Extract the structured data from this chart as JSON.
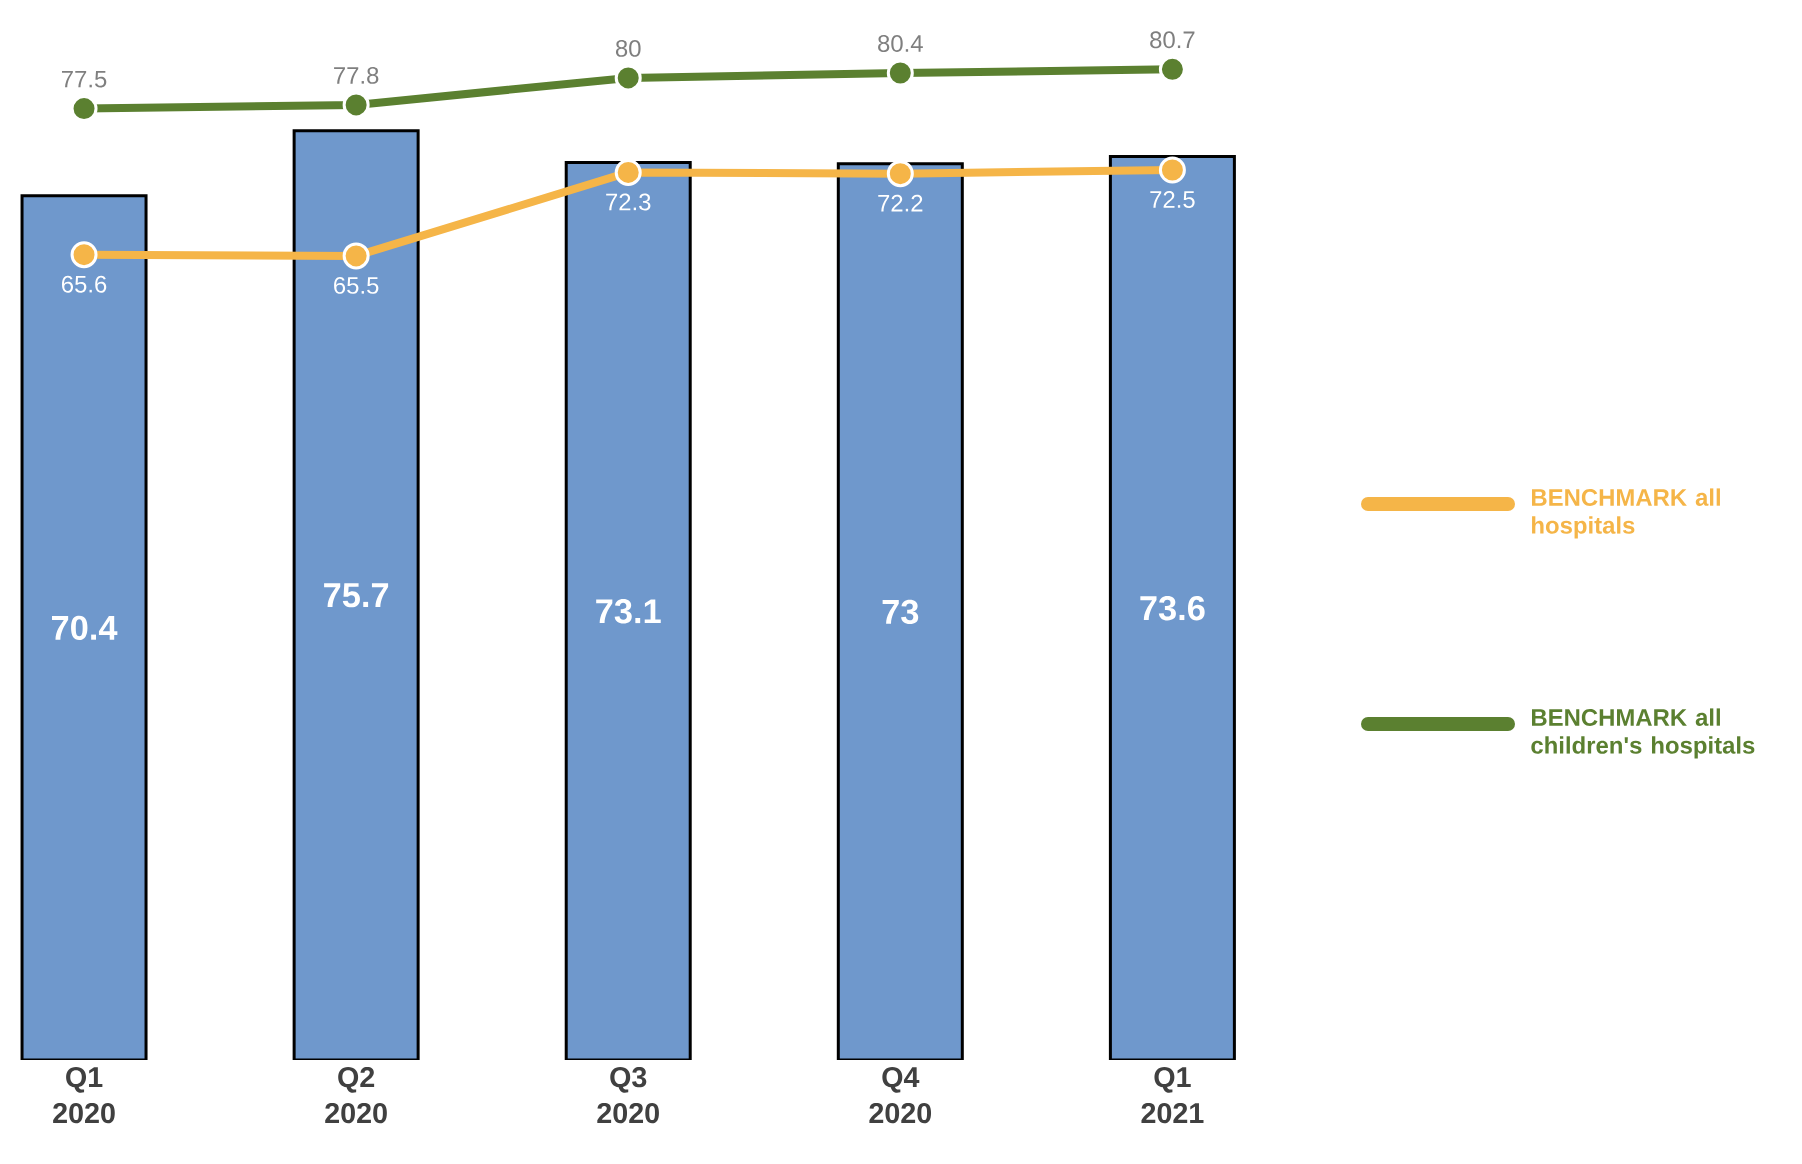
{
  "chart_data": {
    "type": "bar",
    "categories": [
      "Q1 2020",
      "Q2 2020",
      "Q3 2020",
      "Q4 2020",
      "Q1 2021"
    ],
    "series": [
      {
        "color": "#6f98cc",
        "values": [
          70.4,
          75.7,
          73.1,
          73,
          73.6
        ]
      },
      {
        "type": "line",
        "name": "BENCHMARK all hospitals",
        "color": "#f5b548",
        "values": [
          65.6,
          65.5,
          72.3,
          72.2,
          72.5
        ]
      },
      {
        "type": "line",
        "name": "BENCHMARK all children's hospitals",
        "color": "#5b8030",
        "values": [
          77.5,
          77.8,
          80,
          80.4,
          80.7
        ]
      }
    ],
    "data_labels": true,
    "marker": "circle",
    "line_style": "solid",
    "legend": "right",
    "tick_labels": "x"
  }
}
